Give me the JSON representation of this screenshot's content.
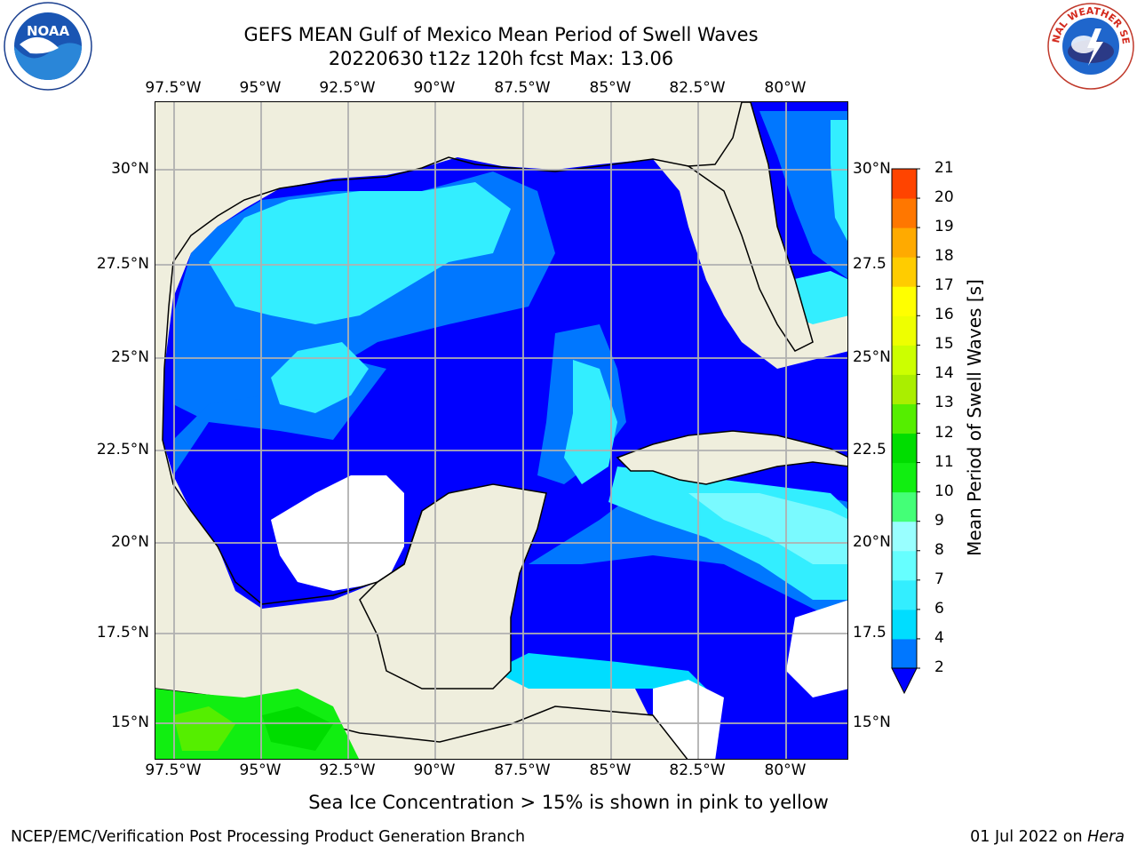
{
  "header": {
    "title_line1": "GEFS MEAN Gulf of Mexico Mean Period of Swell Waves",
    "title_line2": "20220630 t12z 120h fcst   Max: 13.06"
  },
  "logos": {
    "left": {
      "icon": "noaa-logo-icon",
      "text": "NOAA"
    },
    "right": {
      "icon": "national-weather-service-logo-icon",
      "text": "NATIONAL WEATHER SERVICE"
    }
  },
  "map": {
    "lon_ticks": [
      "97.5°W",
      "95°W",
      "92.5°W",
      "90°W",
      "87.5°W",
      "85°W",
      "82.5°W",
      "80°W"
    ],
    "lat_ticks_left": [
      "30°N",
      "27.5°N",
      "25°N",
      "22.5°N",
      "20°N",
      "17.5°N",
      "15°N"
    ],
    "lat_ticks_right": [
      "30°N",
      "27.5",
      "25°N",
      "22.5",
      "20°N",
      "17.5",
      "15°N"
    ],
    "colors": {
      "land": "#efeedd",
      "coast": "#000000",
      "grid": "#b0b0b0",
      "no_data": "#ffffff"
    }
  },
  "colorbar": {
    "title": "Mean Period of Swell Waves [s]",
    "levels": [
      "2",
      "4",
      "6",
      "7",
      "8",
      "9",
      "10",
      "11",
      "12",
      "13",
      "14",
      "15",
      "16",
      "17",
      "18",
      "19",
      "20",
      "21"
    ],
    "colors": [
      "#0000ff",
      "#0077ff",
      "#00ddff",
      "#33eeff",
      "#66ffff",
      "#99ffff",
      "#44ff77",
      "#11ee11",
      "#00dd00",
      "#55ee00",
      "#aaee00",
      "#ccff00",
      "#eeff00",
      "#ffff00",
      "#ffcc00",
      "#ffaa00",
      "#ff7700",
      "#ff4400",
      "#ff1100"
    ]
  },
  "note": "Sea Ice Concentration > 15% is shown in pink to yellow",
  "footer": {
    "left": "NCEP/EMC/Verification Post Processing Product Generation Branch",
    "right_date": "01 Jul 2022 on ",
    "right_host": "Hera"
  }
}
